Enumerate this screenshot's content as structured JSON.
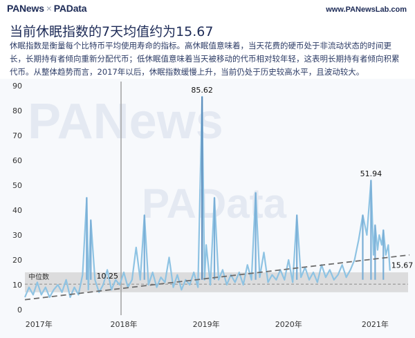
{
  "header": {
    "brand_left": "PANews",
    "brand_sep": "×",
    "brand_right": "PAData",
    "domain": "www.PANewsLab.com"
  },
  "title": "当前休眠指数的7天均值约为15.67",
  "description": "休眠指数是衡量每个比特币平均使用寿命的指标。高休眠值意味着，当天花费的硬币处于非流动状态的时间更长，长期持有者倾向重新分配代币；低休眠值意味着当天被移动的代币相对较年轻，这表明长期持有者倾向积累代币。从整体趋势而言，2017年以后，休眠指数缓慢上升，当前仍处于历史较高水平，且波动较大。",
  "watermarks": [
    "PANews",
    "PAData"
  ],
  "colors": {
    "line": "#8ec3e3",
    "spike": "#5f8fbd",
    "trend": "#6b6b6b",
    "band": "#d7d7d7",
    "text": "#1c2a56"
  },
  "chart_data": {
    "type": "line",
    "x_ticks": [
      "2017年",
      "2018年",
      "2019年",
      "2020年",
      "2021年"
    ],
    "ylim": [
      0,
      90
    ],
    "y_ticks": [
      0,
      10,
      20,
      30,
      40,
      50,
      60,
      70,
      80,
      90
    ],
    "grid": false,
    "median_band": {
      "label": "中位数",
      "value": 10.25,
      "range": [
        7,
        15
      ]
    },
    "divider_year": 2018,
    "trend_line": {
      "start": [
        2016.85,
        4
      ],
      "end": [
        2021.45,
        22
      ]
    },
    "annotations": [
      {
        "x": 2019.0,
        "y": 85.62,
        "text": "85.62"
      },
      {
        "x": 2021.05,
        "y": 51.94,
        "text": "51.94"
      },
      {
        "x": 2018.0,
        "y": 10.25,
        "text": "10.25"
      },
      {
        "x": 2021.28,
        "y": 15.67,
        "text": "15.67"
      }
    ],
    "series": [
      {
        "values": [
          [
            2016.85,
            5
          ],
          [
            2016.9,
            9
          ],
          [
            2016.95,
            6
          ],
          [
            2017.0,
            11
          ],
          [
            2017.05,
            6
          ],
          [
            2017.1,
            9
          ],
          [
            2017.15,
            5
          ],
          [
            2017.2,
            8
          ],
          [
            2017.25,
            10
          ],
          [
            2017.3,
            7
          ],
          [
            2017.35,
            12
          ],
          [
            2017.4,
            5
          ],
          [
            2017.45,
            9
          ],
          [
            2017.5,
            6
          ],
          [
            2017.55,
            14
          ],
          [
            2017.6,
            45
          ],
          [
            2017.62,
            8
          ],
          [
            2017.65,
            36
          ],
          [
            2017.7,
            12
          ],
          [
            2017.75,
            7
          ],
          [
            2017.8,
            10
          ],
          [
            2017.85,
            16
          ],
          [
            2017.9,
            8
          ],
          [
            2017.95,
            12
          ],
          [
            2018.0,
            10
          ],
          [
            2018.05,
            15
          ],
          [
            2018.1,
            9
          ],
          [
            2018.15,
            12
          ],
          [
            2018.2,
            25
          ],
          [
            2018.25,
            12
          ],
          [
            2018.3,
            38
          ],
          [
            2018.35,
            10
          ],
          [
            2018.4,
            15
          ],
          [
            2018.45,
            9
          ],
          [
            2018.5,
            13
          ],
          [
            2018.55,
            11
          ],
          [
            2018.6,
            21
          ],
          [
            2018.65,
            9
          ],
          [
            2018.7,
            14
          ],
          [
            2018.75,
            8
          ],
          [
            2018.8,
            12
          ],
          [
            2018.85,
            10
          ],
          [
            2018.9,
            15
          ],
          [
            2018.95,
            9
          ],
          [
            2019.0,
            85.62
          ],
          [
            2019.03,
            12
          ],
          [
            2019.05,
            26
          ],
          [
            2019.1,
            10
          ],
          [
            2019.15,
            45
          ],
          [
            2019.2,
            12
          ],
          [
            2019.25,
            16
          ],
          [
            2019.3,
            10
          ],
          [
            2019.35,
            14
          ],
          [
            2019.4,
            11
          ],
          [
            2019.45,
            15
          ],
          [
            2019.5,
            10
          ],
          [
            2019.55,
            18
          ],
          [
            2019.6,
            12
          ],
          [
            2019.65,
            47
          ],
          [
            2019.7,
            13
          ],
          [
            2019.75,
            23
          ],
          [
            2019.8,
            11
          ],
          [
            2019.85,
            14
          ],
          [
            2019.9,
            12
          ],
          [
            2019.95,
            16
          ],
          [
            2020.0,
            12
          ],
          [
            2020.05,
            20
          ],
          [
            2020.1,
            11
          ],
          [
            2020.15,
            38
          ],
          [
            2020.2,
            13
          ],
          [
            2020.25,
            17
          ],
          [
            2020.3,
            12
          ],
          [
            2020.35,
            15
          ],
          [
            2020.4,
            11
          ],
          [
            2020.45,
            18
          ],
          [
            2020.5,
            13
          ],
          [
            2020.55,
            16
          ],
          [
            2020.6,
            12
          ],
          [
            2020.65,
            14
          ],
          [
            2020.7,
            18
          ],
          [
            2020.75,
            13
          ],
          [
            2020.8,
            16
          ],
          [
            2020.85,
            20
          ],
          [
            2020.9,
            28
          ],
          [
            2020.95,
            38
          ],
          [
            2021.0,
            30
          ],
          [
            2021.05,
            51.94
          ],
          [
            2021.08,
            22
          ],
          [
            2021.1,
            34
          ],
          [
            2021.13,
            24
          ],
          [
            2021.15,
            30
          ],
          [
            2021.18,
            26
          ],
          [
            2021.2,
            32
          ],
          [
            2021.23,
            22
          ],
          [
            2021.26,
            26
          ],
          [
            2021.28,
            15.67
          ]
        ]
      }
    ]
  }
}
